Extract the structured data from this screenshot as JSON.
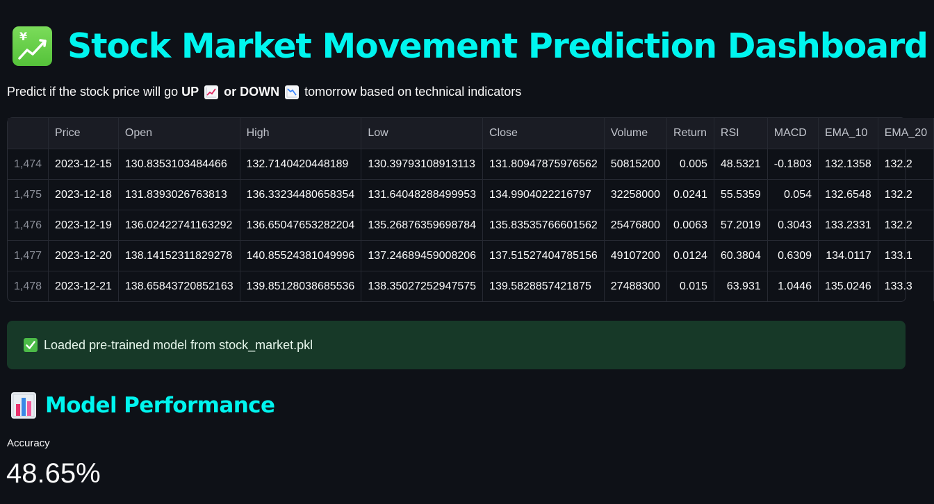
{
  "header": {
    "icon": "chart-increasing-yen-icon",
    "title": "Stock Market Movement Prediction Dashboard"
  },
  "subtitle": {
    "prefix": "Predict if the stock price will go ",
    "up": "UP",
    "or_down": "or DOWN",
    "suffix": "tomorrow based on technical indicators"
  },
  "table": {
    "columns": [
      "",
      "Price",
      "Open",
      "High",
      "Low",
      "Close",
      "Volume",
      "Return",
      "RSI",
      "MACD",
      "EMA_10",
      "EMA_20"
    ],
    "rows": [
      [
        "1,474",
        "2023-12-15",
        "130.8353103484466",
        "132.7140420448189",
        "130.39793108913113",
        "131.80947875976562",
        "50815200",
        "0.005",
        "48.5321",
        "-0.1803",
        "132.1358",
        "132.2"
      ],
      [
        "1,475",
        "2023-12-18",
        "131.8393026763813",
        "136.33234480658354",
        "131.64048288499953",
        "134.9904022216797",
        "32258000",
        "0.0241",
        "55.5359",
        "0.054",
        "132.6548",
        "132.2"
      ],
      [
        "1,476",
        "2023-12-19",
        "136.02422741163292",
        "136.65047653282204",
        "135.26876359698784",
        "135.83535766601562",
        "25476800",
        "0.0063",
        "57.2019",
        "0.3043",
        "133.2331",
        "132.2"
      ],
      [
        "1,477",
        "2023-12-20",
        "138.14152311829278",
        "140.85524381049996",
        "137.24689459008206",
        "137.51527404785156",
        "49107200",
        "0.0124",
        "60.3804",
        "0.6309",
        "134.0117",
        "133.1"
      ],
      [
        "1,478",
        "2023-12-21",
        "138.65843720852163",
        "139.85128038685536",
        "138.35027252947575",
        "139.5828857421875",
        "27488300",
        "0.015",
        "63.931",
        "1.0446",
        "135.0246",
        "133.3"
      ]
    ]
  },
  "alert": {
    "icon": "check-mark-icon",
    "text": "Loaded pre-trained model from stock_market.pkl"
  },
  "performance": {
    "icon": "bar-chart-icon",
    "title": "Model Performance",
    "metric_label": "Accuracy",
    "metric_value": "48.65%"
  },
  "colors": {
    "background": "#0e1117",
    "accent": "#00f5ef",
    "success_bg": "#173928"
  }
}
